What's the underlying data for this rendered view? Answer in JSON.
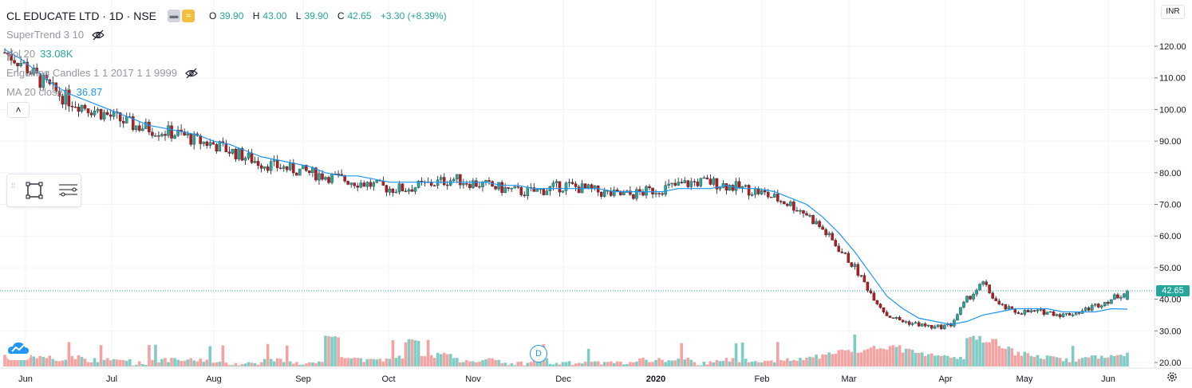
{
  "header": {
    "symbol": "CL EDUCATE LTD · 1D · NSE",
    "open_label": "O",
    "open": "39.90",
    "high_label": "H",
    "high": "43.00",
    "low_label": "L",
    "low": "39.90",
    "close_label": "C",
    "close": "42.65",
    "change": "+3.30 (+8.39%)",
    "currency_badge": "INR"
  },
  "indicators": [
    {
      "name": "SuperTrend 3 10",
      "value": "",
      "hidden": true
    },
    {
      "name": "Vol 20",
      "value": "33.08K",
      "hidden": false
    },
    {
      "name": "Engulfing Candles 1 1 2017 1 1 9999",
      "value": "",
      "hidden": true
    },
    {
      "name": "MA 20 close 0",
      "value": "36.87",
      "hidden": false
    }
  ],
  "icons": {
    "collapse": "chevron-up-icon",
    "draw_rect": "rectangle-tool-icon",
    "draw_lines": "object-tree-icon",
    "logo": "tradingview-cloud-icon",
    "settings": "gear-icon",
    "dividend_marker": "D"
  },
  "colors": {
    "up": "#26a69a",
    "down": "#ef5350",
    "candle_up_body": "#26a69a",
    "candle_down_body": "#b71c1c",
    "ma_line": "#2196f3",
    "volume_up": "#80cbc4",
    "volume_down": "#f4a3a3",
    "grid": "#f0f3fa"
  },
  "chart_data": {
    "type": "candlestick",
    "title": "CL EDUCATE LTD · 1D · NSE",
    "ylim": [
      18,
      128
    ],
    "y_ticks": [
      "20.00",
      "30.00",
      "40.00",
      "50.00",
      "60.00",
      "70.00",
      "80.00",
      "90.00",
      "100.00",
      "110.00",
      "120.00"
    ],
    "x_tick_labels": [
      "Jun",
      "Jul",
      "Aug",
      "Sep",
      "Oct",
      "Nov",
      "Dec",
      "2020",
      "Feb",
      "Mar",
      "Apr",
      "May",
      "Jun"
    ],
    "last_price": "42.65",
    "grid": true,
    "closes_weekly": [
      118,
      115,
      110,
      106,
      103,
      101,
      99,
      97,
      95,
      94,
      93,
      92,
      90,
      89,
      87,
      85,
      83,
      82,
      81,
      80,
      79,
      78,
      77,
      76,
      75,
      75,
      76,
      77,
      78,
      77,
      76,
      75,
      74,
      74,
      75,
      76,
      75,
      74,
      73,
      73,
      74,
      75,
      76,
      77,
      77,
      76,
      75,
      74,
      72,
      70,
      67,
      62,
      56,
      50,
      42,
      35,
      33,
      32,
      31,
      32,
      40,
      45,
      38,
      36,
      36,
      36,
      35,
      36,
      38,
      40,
      42.65
    ],
    "ma20_weekly": [
      119,
      116,
      112,
      108,
      105,
      103,
      101,
      99,
      97,
      95,
      94,
      93,
      92,
      90,
      89,
      87,
      85,
      84,
      83,
      82,
      80,
      79,
      79,
      78,
      77,
      77,
      77,
      77,
      77,
      77,
      77,
      76,
      76,
      75,
      75,
      75,
      75,
      75,
      74,
      74,
      74,
      74,
      75,
      75,
      75,
      76,
      75,
      75,
      74,
      72,
      70,
      66,
      61,
      55,
      48,
      41,
      37,
      34,
      33,
      32,
      33,
      35,
      36,
      37,
      37,
      37,
      36,
      36,
      36,
      37,
      36.87
    ],
    "volume_weekly": [
      4,
      3,
      3,
      2,
      3,
      2,
      2,
      2,
      1,
      2,
      2,
      2,
      2,
      1,
      1,
      1,
      2,
      2,
      1,
      1,
      9,
      3,
      2,
      2,
      3,
      8,
      3,
      4,
      2,
      2,
      2,
      1,
      1,
      2,
      1,
      1,
      1,
      1,
      1,
      2,
      2,
      2,
      2,
      1,
      2,
      2,
      2,
      2,
      2,
      2,
      3,
      4,
      5,
      5,
      6,
      6,
      5,
      4,
      4,
      3,
      9,
      8,
      6,
      4,
      3,
      3,
      2,
      3,
      3,
      4,
      5
    ]
  }
}
